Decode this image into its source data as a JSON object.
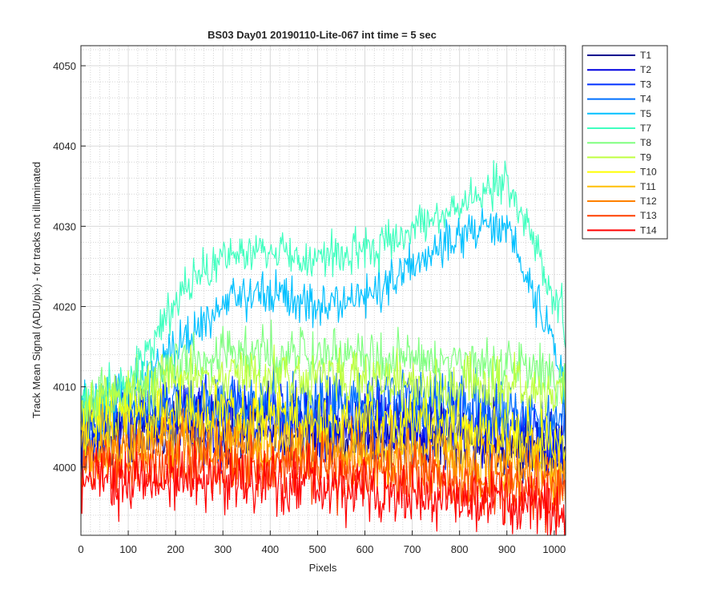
{
  "chart_data": {
    "type": "line",
    "title": "BS03 Day01 20190110-Lite-067 int time = 5 sec",
    "xlabel": "Pixels",
    "ylabel": "Track Mean Signal (ADU/pix) - for tracks not illuminated",
    "xlim": [
      0,
      1024
    ],
    "ylim": [
      3991.5,
      4052.5
    ],
    "xticks": [
      0,
      100,
      200,
      300,
      400,
      500,
      600,
      700,
      800,
      900,
      1000
    ],
    "yticks": [
      4000,
      4010,
      4020,
      4030,
      4040,
      4050
    ],
    "grid": "on",
    "legend_position": "outside-top-right",
    "x_knots": [
      0,
      100,
      200,
      300,
      400,
      500,
      600,
      700,
      800,
      900,
      1024
    ],
    "series": [
      {
        "name": "T1",
        "color": "#00008f",
        "mean": [
          4004,
          4005,
          4005.5,
          4005,
          4005,
          4004.5,
          4004,
          4004,
          4003.5,
          4003,
          4002
        ],
        "noise": 2.2
      },
      {
        "name": "T2",
        "color": "#0000e0",
        "mean": [
          4004.5,
          4005,
          4005.5,
          4005,
          4005,
          4004.5,
          4004.5,
          4004,
          4004,
          4003,
          4001
        ],
        "noise": 2.2
      },
      {
        "name": "T3",
        "color": "#0030ff",
        "mean": [
          4005,
          4006,
          4007,
          4007,
          4007,
          4006.5,
          4006.5,
          4006.5,
          4006,
          4005,
          4003
        ],
        "noise": 2.1
      },
      {
        "name": "T4",
        "color": "#0070ff",
        "mean": [
          4006,
          4007,
          4008,
          4008,
          4008,
          4008,
          4008,
          4008,
          4008,
          4007,
          4005
        ],
        "noise": 2.0
      },
      {
        "name": "T5",
        "color": "#00c0ff",
        "mean": [
          4008,
          4009,
          4015,
          4020,
          4022,
          4020,
          4021,
          4025,
          4029,
          4030,
          4011
        ],
        "noise": 1.4
      },
      {
        "name": "T7",
        "color": "#40ffbf",
        "mean": [
          4008,
          4010,
          4021,
          4026,
          4027,
          4026,
          4027,
          4029,
          4033,
          4036,
          4018
        ],
        "noise": 1.4
      },
      {
        "name": "T8",
        "color": "#80ff80",
        "mean": [
          4008,
          4010,
          4013,
          4014,
          4014,
          4014,
          4014,
          4013,
          4013,
          4013,
          4011
        ],
        "noise": 1.6
      },
      {
        "name": "T9",
        "color": "#bfff40",
        "mean": [
          4007,
          4009,
          4011,
          4011.5,
          4011,
          4011,
          4011,
          4010.5,
          4010,
          4010,
          4009
        ],
        "noise": 1.7
      },
      {
        "name": "T10",
        "color": "#ffff00",
        "mean": [
          4005,
          4006,
          4007,
          4006.5,
          4006,
          4006,
          4005.5,
          4005,
          4004.5,
          4004,
          4002.5
        ],
        "noise": 1.9
      },
      {
        "name": "T11",
        "color": "#ffbf00",
        "mean": [
          4002,
          4003,
          4004,
          4004,
          4003.5,
          4003,
          4002.5,
          4002,
          4001.5,
          4001,
          3999.5
        ],
        "noise": 2.0
      },
      {
        "name": "T12",
        "color": "#ff8000",
        "mean": [
          4001,
          4002,
          4002.5,
          4002.5,
          4002,
          4001.5,
          4001,
          4000,
          3999.5,
          3999,
          3998
        ],
        "noise": 2.0
      },
      {
        "name": "T13",
        "color": "#ff4000",
        "mean": [
          3999.5,
          4000,
          4000.5,
          4000,
          4000,
          3999.5,
          3999,
          3998.5,
          3998,
          3997.5,
          3996.5
        ],
        "noise": 2.0
      },
      {
        "name": "T14",
        "color": "#ff0000",
        "mean": [
          3998,
          3998,
          3998.5,
          3998,
          3998,
          3997.5,
          3997,
          3996,
          3996,
          3995.5,
          3995
        ],
        "noise": 2.0
      }
    ]
  }
}
